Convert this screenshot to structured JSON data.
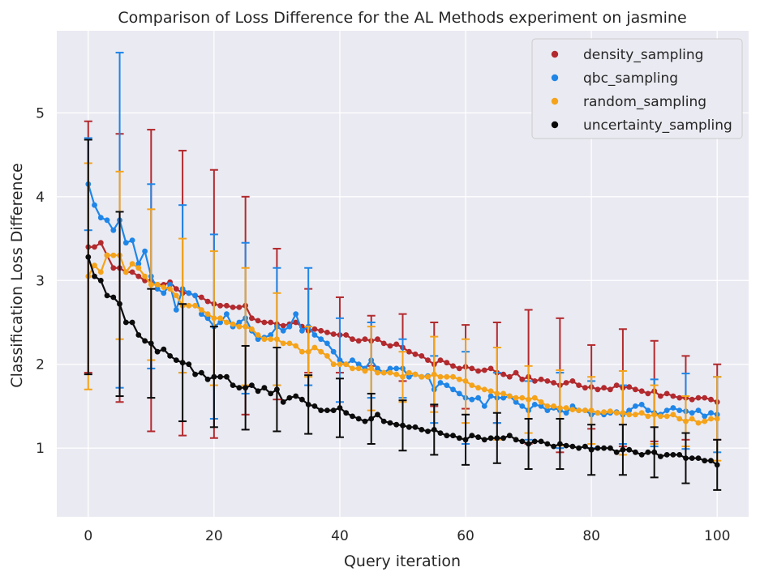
{
  "chart_data": {
    "type": "line",
    "title": "Comparison of Loss Difference for the AL Methods experiment on jasmine",
    "xlabel": "Query iteration",
    "ylabel": "Classification Loss Difference",
    "xlim": [
      -5,
      105
    ],
    "ylim": [
      0.18,
      5.98
    ],
    "xticks": [
      0,
      20,
      40,
      60,
      80,
      100
    ],
    "yticks": [
      1,
      2,
      3,
      4,
      5
    ],
    "grid": true,
    "legend_position": "top-right",
    "series": [
      {
        "name": "density_sampling",
        "color": "#b22a2e",
        "values": [
          3.4,
          3.4,
          3.45,
          3.3,
          3.15,
          3.15,
          3.1,
          3.1,
          3.05,
          3.0,
          3.0,
          2.95,
          2.95,
          2.98,
          2.9,
          2.85,
          2.85,
          2.82,
          2.8,
          2.75,
          2.72,
          2.7,
          2.7,
          2.68,
          2.68,
          2.7,
          2.55,
          2.52,
          2.5,
          2.5,
          2.48,
          2.46,
          2.48,
          2.5,
          2.45,
          2.4,
          2.42,
          2.4,
          2.38,
          2.36,
          2.35,
          2.35,
          2.3,
          2.28,
          2.3,
          2.28,
          2.3,
          2.25,
          2.22,
          2.24,
          2.2,
          2.15,
          2.12,
          2.1,
          2.05,
          2.0,
          2.05,
          2.02,
          1.98,
          1.95,
          1.97,
          1.95,
          1.92,
          1.93,
          1.95,
          1.9,
          1.88,
          1.85,
          1.9,
          1.82,
          1.85,
          1.8,
          1.82,
          1.8,
          1.78,
          1.75,
          1.78,
          1.8,
          1.75,
          1.72,
          1.73,
          1.7,
          1.72,
          1.7,
          1.75,
          1.72,
          1.73,
          1.7,
          1.68,
          1.65,
          1.68,
          1.62,
          1.65,
          1.62,
          1.6,
          1.6,
          1.58,
          1.6,
          1.6,
          1.58,
          1.55
        ],
        "err_iterations": [
          0,
          5,
          10,
          15,
          20,
          25,
          30,
          35,
          40,
          45,
          50,
          55,
          60,
          65,
          70,
          75,
          80,
          85,
          90,
          95,
          100
        ],
        "err_half": [
          1.5,
          1.6,
          1.8,
          1.7,
          1.6,
          1.3,
          0.9,
          0.5,
          0.45,
          0.3,
          0.4,
          0.5,
          0.5,
          0.6,
          0.8,
          0.8,
          0.5,
          0.7,
          0.6,
          0.5,
          0.45
        ]
      },
      {
        "name": "qbc_sampling",
        "color": "#1f86e8",
        "values": [
          4.15,
          3.9,
          3.75,
          3.72,
          3.6,
          3.72,
          3.45,
          3.48,
          3.2,
          3.35,
          3.05,
          2.9,
          2.85,
          2.95,
          2.65,
          2.9,
          2.85,
          2.82,
          2.6,
          2.55,
          2.45,
          2.5,
          2.6,
          2.45,
          2.5,
          2.55,
          2.4,
          2.3,
          2.32,
          2.35,
          2.45,
          2.4,
          2.45,
          2.6,
          2.4,
          2.45,
          2.35,
          2.3,
          2.25,
          2.15,
          2.05,
          2.0,
          2.05,
          2.0,
          1.95,
          2.05,
          1.95,
          1.9,
          1.95,
          1.95,
          1.95,
          1.85,
          1.88,
          1.85,
          1.86,
          1.7,
          1.78,
          1.75,
          1.7,
          1.65,
          1.6,
          1.58,
          1.6,
          1.5,
          1.62,
          1.6,
          1.6,
          1.62,
          1.55,
          1.5,
          1.45,
          1.52,
          1.5,
          1.45,
          1.48,
          1.45,
          1.42,
          1.5,
          1.45,
          1.45,
          1.4,
          1.42,
          1.4,
          1.42,
          1.43,
          1.4,
          1.45,
          1.5,
          1.52,
          1.45,
          1.42,
          1.4,
          1.45,
          1.48,
          1.45,
          1.44,
          1.42,
          1.45,
          1.38,
          1.42,
          1.4
        ],
        "err_iterations": [
          0,
          5,
          10,
          15,
          20,
          25,
          30,
          35,
          40,
          45,
          50,
          55,
          60,
          65,
          70,
          75,
          80,
          85,
          90,
          95,
          100
        ],
        "err_half": [
          0.55,
          2.0,
          1.1,
          1.0,
          1.1,
          0.9,
          0.7,
          0.7,
          0.5,
          0.45,
          0.35,
          0.4,
          0.55,
          0.3,
          0.35,
          0.45,
          0.4,
          0.35,
          0.4,
          0.45,
          0.45
        ]
      },
      {
        "name": "random_sampling",
        "color": "#f5a31a",
        "values": [
          3.05,
          3.18,
          3.1,
          3.3,
          3.3,
          3.3,
          3.1,
          3.2,
          3.15,
          3.05,
          2.95,
          2.95,
          2.92,
          2.9,
          2.82,
          2.7,
          2.7,
          2.7,
          2.65,
          2.6,
          2.55,
          2.55,
          2.5,
          2.48,
          2.45,
          2.45,
          2.42,
          2.35,
          2.3,
          2.3,
          2.3,
          2.25,
          2.25,
          2.22,
          2.15,
          2.15,
          2.2,
          2.15,
          2.1,
          2.0,
          2.0,
          2.0,
          1.95,
          1.95,
          1.92,
          1.95,
          1.9,
          1.9,
          1.9,
          1.88,
          1.85,
          1.9,
          1.88,
          1.85,
          1.85,
          1.88,
          1.85,
          1.85,
          1.85,
          1.82,
          1.8,
          1.75,
          1.72,
          1.7,
          1.68,
          1.65,
          1.65,
          1.62,
          1.6,
          1.6,
          1.58,
          1.6,
          1.55,
          1.5,
          1.5,
          1.48,
          1.48,
          1.46,
          1.45,
          1.45,
          1.45,
          1.42,
          1.43,
          1.44,
          1.42,
          1.42,
          1.4,
          1.4,
          1.42,
          1.38,
          1.4,
          1.38,
          1.38,
          1.4,
          1.35,
          1.32,
          1.35,
          1.3,
          1.32,
          1.35,
          1.35
        ],
        "err_iterations": [
          0,
          5,
          10,
          15,
          20,
          25,
          30,
          35,
          40,
          45,
          50,
          55,
          60,
          65,
          70,
          75,
          80,
          85,
          90,
          95,
          100
        ],
        "err_half": [
          1.35,
          1.0,
          0.9,
          0.8,
          0.8,
          0.7,
          0.55,
          0.3,
          0.0,
          0.5,
          0.3,
          0.45,
          0.5,
          0.55,
          0.4,
          0.45,
          0.4,
          0.5,
          0.35,
          0.3,
          0.5
        ]
      },
      {
        "name": "uncertainty_sampling",
        "color": "#0b0b0b",
        "values": [
          3.28,
          3.05,
          3.0,
          2.82,
          2.8,
          2.72,
          2.5,
          2.5,
          2.35,
          2.28,
          2.25,
          2.15,
          2.18,
          2.1,
          2.05,
          2.02,
          2.0,
          1.88,
          1.9,
          1.82,
          1.85,
          1.85,
          1.85,
          1.75,
          1.72,
          1.72,
          1.75,
          1.68,
          1.72,
          1.65,
          1.7,
          1.55,
          1.6,
          1.62,
          1.58,
          1.52,
          1.5,
          1.45,
          1.45,
          1.45,
          1.48,
          1.42,
          1.38,
          1.35,
          1.32,
          1.35,
          1.4,
          1.32,
          1.3,
          1.28,
          1.27,
          1.25,
          1.25,
          1.22,
          1.2,
          1.22,
          1.18,
          1.15,
          1.15,
          1.12,
          1.1,
          1.15,
          1.13,
          1.1,
          1.12,
          1.12,
          1.12,
          1.15,
          1.1,
          1.08,
          1.05,
          1.08,
          1.08,
          1.05,
          1.02,
          1.05,
          1.03,
          1.02,
          1.0,
          1.02,
          0.98,
          1.0,
          1.0,
          1.0,
          0.95,
          0.98,
          0.98,
          0.95,
          0.92,
          0.95,
          0.95,
          0.9,
          0.92,
          0.92,
          0.92,
          0.88,
          0.88,
          0.88,
          0.85,
          0.85,
          0.8
        ],
        "err_iterations": [
          0,
          5,
          10,
          15,
          20,
          25,
          30,
          35,
          40,
          45,
          50,
          55,
          60,
          65,
          70,
          75,
          80,
          85,
          90,
          95,
          100
        ],
        "err_half": [
          1.4,
          1.1,
          0.65,
          0.7,
          0.6,
          0.5,
          0.5,
          0.35,
          0.35,
          0.3,
          0.3,
          0.3,
          0.3,
          0.3,
          0.3,
          0.3,
          0.3,
          0.3,
          0.3,
          0.3,
          0.3
        ]
      }
    ]
  }
}
